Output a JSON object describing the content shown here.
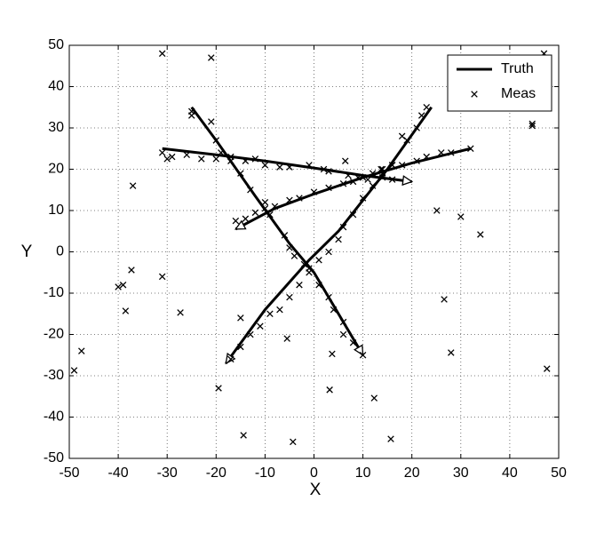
{
  "chart_data": {
    "type": "line",
    "xlabel": "X",
    "ylabel": "Y",
    "xlim": [
      -50,
      50
    ],
    "ylim": [
      -50,
      50
    ],
    "xticks": [
      -50,
      -40,
      -30,
      -20,
      -10,
      0,
      10,
      20,
      30,
      40,
      50
    ],
    "yticks": [
      -50,
      -40,
      -30,
      -20,
      -10,
      0,
      10,
      20,
      30,
      40,
      50
    ],
    "grid": true,
    "legend": "upper right",
    "series": [
      {
        "name": "Truth",
        "color": "#000000",
        "marker": "line",
        "tracks": [
          {
            "x": [
              -31,
              -20,
              -10,
              0,
              10,
              20
            ],
            "y": [
              25,
              23.5,
              22,
              20.3,
              18.5,
              17
            ]
          },
          {
            "x": [
              32,
              20,
              10,
              0,
              -8,
              -16
            ],
            "y": [
              25,
              21.5,
              18,
              14,
              10.5,
              5.5
            ]
          },
          {
            "x": [
              -25,
              -20,
              -12,
              -5,
              0,
              5,
              10
            ],
            "y": [
              35,
              27,
              13.5,
              2,
              -5,
              -15,
              -25
            ]
          },
          {
            "x": [
              24,
              15,
              5,
              -1,
              -10,
              -18
            ],
            "y": [
              35,
              20,
              5,
              -2,
              -14,
              -27
            ]
          }
        ]
      },
      {
        "name": "Meas",
        "color": "#000000",
        "marker": "x",
        "x": [
          -31,
          -21,
          47,
          44.6,
          44.6,
          -37,
          -37.3,
          -40,
          -39,
          -38.5,
          -47.5,
          -49,
          -31,
          -27.3,
          -15,
          -5.5,
          -19.5,
          -14.4,
          -4.3,
          3.7,
          3.2,
          12.3,
          15.7,
          25.1,
          30,
          34,
          26.6,
          28,
          47.6,
          6.4,
          13.7,
          -31,
          -30,
          -29,
          -26,
          -23,
          -20,
          -17,
          -14,
          -12,
          -10,
          -7,
          -5,
          -1,
          2,
          3,
          7,
          9,
          11,
          14,
          16,
          32,
          28,
          26,
          23,
          21,
          18,
          16,
          14,
          12,
          10,
          8,
          6,
          3,
          0,
          -3,
          -5,
          -8,
          -10,
          -12,
          -14,
          -16,
          -25,
          -25,
          -21,
          -20,
          -19,
          -17,
          -15,
          -13,
          -10,
          -9,
          -6,
          -5,
          -4,
          -2,
          -1,
          1,
          3,
          4,
          6,
          6,
          8,
          10,
          23,
          22,
          21,
          19,
          18,
          16,
          14,
          12,
          10,
          8,
          6,
          5,
          3,
          1,
          -1,
          -3,
          -5,
          -7,
          -9,
          -11,
          -13,
          -15,
          -17
        ],
        "y": [
          48,
          47,
          48,
          31,
          30.5,
          16,
          -4.4,
          -8.5,
          -8,
          -14.3,
          -24,
          -28.7,
          -6,
          -14.7,
          -16,
          -21,
          -33,
          -44.4,
          -46,
          -24.7,
          -33.4,
          -35.4,
          -45.3,
          10,
          8.5,
          4.2,
          -11.5,
          -24.4,
          -28.3,
          22,
          20,
          24,
          22.5,
          23,
          23.5,
          22.5,
          22.5,
          23,
          22,
          22.5,
          21,
          20.5,
          20.5,
          21,
          20,
          19.5,
          18.5,
          18,
          17.5,
          18,
          17.5,
          25,
          24,
          24,
          23,
          22,
          21,
          21,
          20,
          19,
          18,
          17,
          16.5,
          15.5,
          14.5,
          13,
          12.5,
          11,
          10.5,
          9.5,
          8,
          7.5,
          34,
          33,
          31.5,
          27,
          24,
          22,
          19,
          15,
          12,
          9,
          4,
          1,
          -1,
          -3,
          -5,
          -8,
          -11,
          -14,
          -17,
          -20,
          -22,
          -25,
          35,
          33,
          30,
          27,
          28,
          21,
          19,
          16,
          13,
          9,
          6,
          3,
          0,
          -2,
          -4,
          -8,
          -11,
          -14,
          -15,
          -18,
          -20,
          -23,
          -26
        ]
      }
    ]
  }
}
